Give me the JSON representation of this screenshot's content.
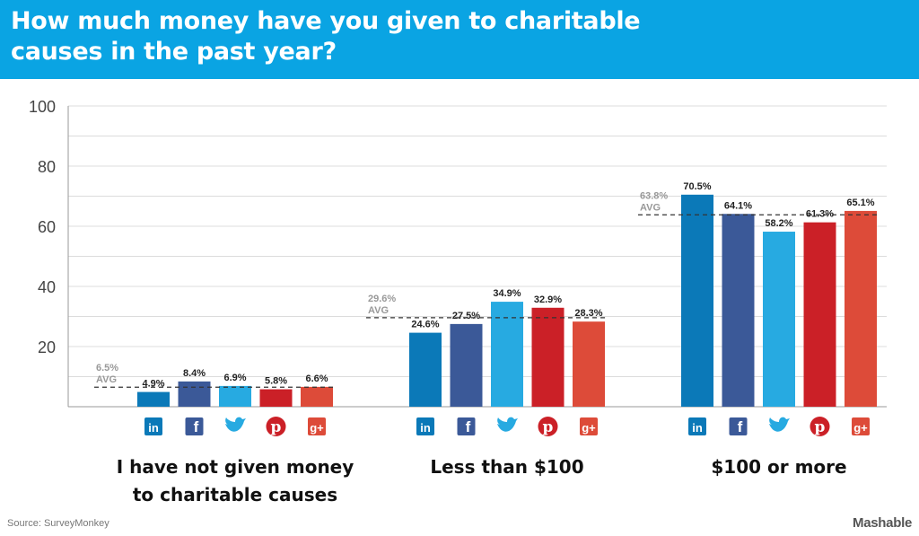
{
  "header": {
    "title_line1": "How much money have you given to charitable",
    "title_line2": "causes in the past year?"
  },
  "footer": {
    "source": "Source: SurveyMonkey",
    "brand": "Mashable"
  },
  "chart_data": {
    "type": "bar",
    "ylim": [
      0,
      100
    ],
    "yticks": [
      20,
      40,
      60,
      80,
      100
    ],
    "grid": true,
    "categories": [
      "I have not given money to charitable causes",
      "Less than $100",
      "$100 or more"
    ],
    "category_lines": [
      [
        "I have not given money",
        "to charitable causes"
      ],
      [
        "Less than $100"
      ],
      [
        "$100 or more"
      ]
    ],
    "series": [
      {
        "icon": "linkedin-icon",
        "color": "#0b79b8",
        "glyph": "in",
        "values": [
          4.9,
          24.6,
          70.5
        ],
        "labels": [
          "4.9%",
          "24.6%",
          "70.5%"
        ]
      },
      {
        "icon": "facebook-icon",
        "color": "#3b5998",
        "glyph": "f",
        "values": [
          8.4,
          27.5,
          64.1
        ],
        "labels": [
          "8.4%",
          "27.5%",
          "64.1%"
        ]
      },
      {
        "icon": "twitter-icon",
        "color": "#27aae1",
        "glyph": "tw",
        "values": [
          6.9,
          34.9,
          58.2
        ],
        "labels": [
          "6.9%",
          "34.9%",
          "58.2%"
        ]
      },
      {
        "icon": "pinterest-icon",
        "color": "#cb2027",
        "glyph": "p",
        "values": [
          5.8,
          32.9,
          61.3
        ],
        "labels": [
          "5.8%",
          "32.9%",
          "61.3%"
        ]
      },
      {
        "icon": "googleplus-icon",
        "color": "#dd4b39",
        "glyph": "g+",
        "values": [
          6.6,
          28.3,
          65.1
        ],
        "labels": [
          "6.6%",
          "28.3%",
          "65.1%"
        ]
      }
    ],
    "averages": [
      {
        "value": 6.5,
        "label": "6.5%",
        "tag": "AVG"
      },
      {
        "value": 29.6,
        "label": "29.6%",
        "tag": "AVG"
      },
      {
        "value": 63.8,
        "label": "63.8%",
        "tag": "AVG"
      }
    ]
  }
}
